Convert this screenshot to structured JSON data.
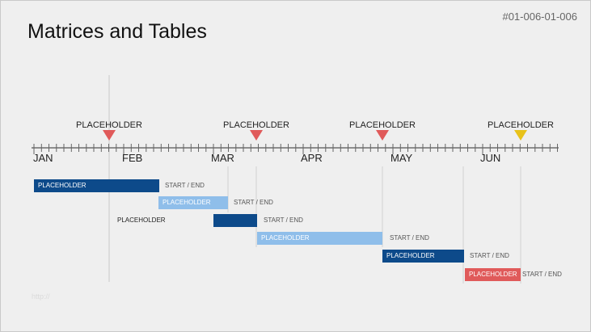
{
  "slide": {
    "title": "Matrices and Tables",
    "id": "#01-006-01-006",
    "footer": "http://"
  },
  "timeline": {
    "months": [
      "JAN",
      "FEB",
      "MAR",
      "APR",
      "MAY",
      "JUN"
    ],
    "milestones": [
      {
        "label": "PLACEHOLDER",
        "color": "#e05a5a"
      },
      {
        "label": "PLACEHOLDER",
        "color": "#e05a5a"
      },
      {
        "label": "PLACEHOLDER",
        "color": "#e05a5a"
      },
      {
        "label": "PLACEHOLDER",
        "color": "#e8c21a"
      }
    ]
  },
  "tasks": [
    {
      "label": "PLACEHOLDER",
      "note": "START / END",
      "color": "#0d4a8a"
    },
    {
      "label": "PLACEHOLDER",
      "note": "START / END",
      "color": "#8fbeea"
    },
    {
      "label": "PLACEHOLDER",
      "note": "START / END",
      "color": "#0d4a8a"
    },
    {
      "label": "PLACEHOLDER",
      "note": "START / END",
      "color": "#8fbeea"
    },
    {
      "label": "PLACEHOLDER",
      "note": "START / END",
      "color": "#0d4a8a"
    },
    {
      "label": "PLACEHOLDER",
      "note": "START / END",
      "color": "#e05a5a"
    }
  ]
}
